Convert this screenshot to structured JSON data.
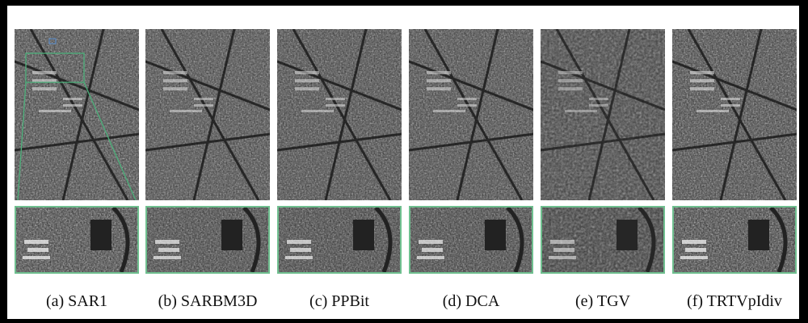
{
  "figure": {
    "panels": [
      {
        "id": "a",
        "caption": "(a) SAR1"
      },
      {
        "id": "b",
        "caption": "(b) SARBM3D"
      },
      {
        "id": "c",
        "caption": "(c) PPBit"
      },
      {
        "id": "d",
        "caption": "(d) DCA"
      },
      {
        "id": "e",
        "caption": "(e) TGV"
      },
      {
        "id": "f",
        "caption": "(f) TRTVpIdiv"
      }
    ],
    "colors": {
      "background": "#000000",
      "frame": "#ffffff",
      "zoom_border": "#6fbf8f",
      "roi_outline": "#4caf7a"
    }
  }
}
